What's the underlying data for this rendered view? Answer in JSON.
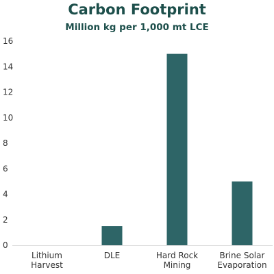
{
  "colors": {
    "bar": "#2e6567",
    "title": "#1d4f4b",
    "axis": "#333333"
  },
  "chart_data": {
    "type": "bar",
    "title": "Carbon Footprint",
    "subtitle": "Million kg per 1,000 mt LCE",
    "categories": [
      [
        "Lithium",
        "Harvest"
      ],
      [
        "DLE"
      ],
      [
        "Hard Rock",
        "Mining"
      ],
      [
        "Brine Solar",
        "Evaporation"
      ]
    ],
    "values": [
      0,
      1.5,
      15,
      5
    ],
    "ylim": [
      0,
      16
    ],
    "yticks": [
      0,
      2,
      4,
      6,
      8,
      10,
      12,
      14,
      16
    ],
    "grid": false,
    "legend": "none"
  }
}
